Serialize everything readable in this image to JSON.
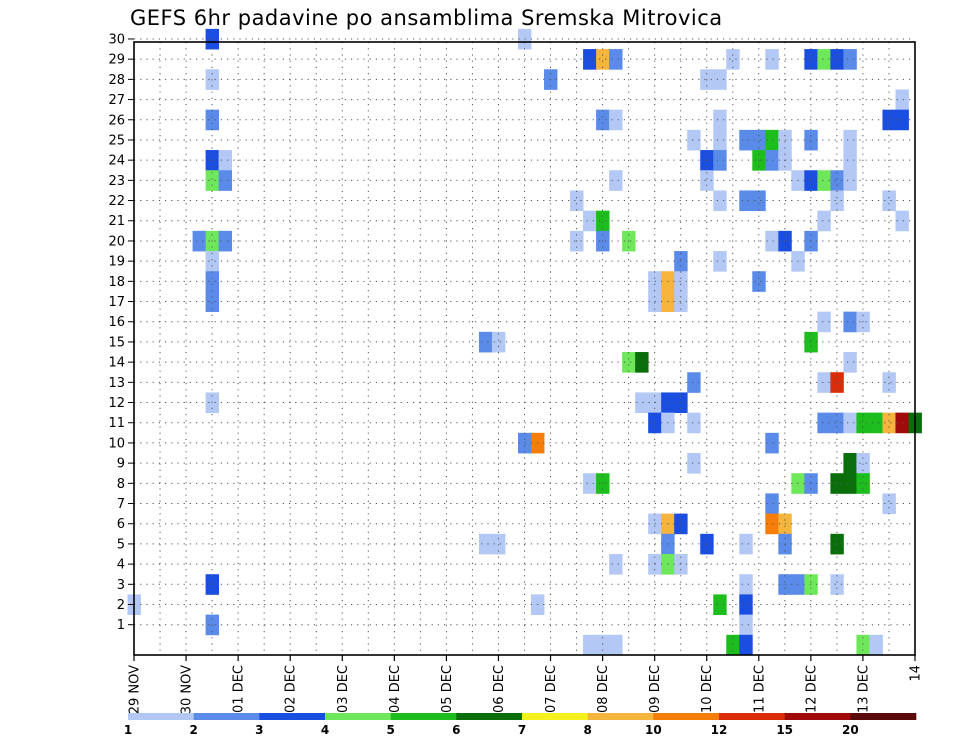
{
  "chart_data": {
    "type": "heatmap",
    "title": "GEFS 6hr padavine po ansamblima Sremska Mitrovica",
    "x_tick_labels": [
      "29 NOV",
      "30 NOV",
      "01 DEC",
      "02 DEC",
      "03 DEC",
      "04 DEC",
      "05 DEC",
      "06 DEC",
      "07 DEC",
      "08 DEC",
      "09 DEC",
      "10 DEC",
      "11 DEC",
      "12 DEC",
      "13 DEC",
      "14"
    ],
    "x_unit": "6-hour step (4 steps per day), step 0 = 29 NOV",
    "y_tick_labels": [
      "1",
      "2",
      "3",
      "4",
      "5",
      "6",
      "7",
      "8",
      "9",
      "10",
      "11",
      "12",
      "13",
      "14",
      "15",
      "16",
      "17",
      "18",
      "19",
      "20",
      "21",
      "22",
      "23",
      "24",
      "25",
      "26",
      "27",
      "28",
      "29",
      "30"
    ],
    "y_unit": "ensemble member (0..30)",
    "xlim": [
      0,
      60
    ],
    "ylim": [
      0,
      30
    ],
    "grid": true,
    "colorbar": {
      "labels": [
        "1",
        "2",
        "3",
        "4",
        "5",
        "6",
        "7",
        "8",
        "10",
        "12",
        "15",
        "20"
      ],
      "bounds": [
        1,
        2,
        3,
        4,
        5,
        6,
        7,
        8,
        10,
        12,
        15,
        20
      ],
      "colors": [
        "#b4c8f5",
        "#5a8be8",
        "#1a4ee0",
        "#6ee85a",
        "#1dbd1d",
        "#0a6e0a",
        "#f5f01e",
        "#f5b43c",
        "#f57d0a",
        "#dc2d0a",
        "#a00a0a",
        "#5a0a0a"
      ]
    },
    "cells": [
      [
        6,
        30,
        3
      ],
      [
        30,
        30,
        1
      ],
      [
        35,
        29,
        3
      ],
      [
        36,
        29,
        8
      ],
      [
        37,
        29,
        2
      ],
      [
        46,
        29,
        1
      ],
      [
        49,
        29,
        1
      ],
      [
        52,
        29,
        3
      ],
      [
        53,
        29,
        4
      ],
      [
        54,
        29,
        3
      ],
      [
        55,
        29,
        2
      ],
      [
        6,
        28,
        1
      ],
      [
        32,
        28,
        2
      ],
      [
        44,
        28,
        1
      ],
      [
        45,
        28,
        1
      ],
      [
        59,
        27,
        1
      ],
      [
        6,
        26,
        2
      ],
      [
        36,
        26,
        2
      ],
      [
        37,
        26,
        1
      ],
      [
        45,
        26,
        1
      ],
      [
        58,
        26,
        3
      ],
      [
        59,
        26,
        3
      ],
      [
        43,
        25,
        1
      ],
      [
        45,
        25,
        1
      ],
      [
        47,
        25,
        2
      ],
      [
        48,
        25,
        2
      ],
      [
        49,
        25,
        5
      ],
      [
        50,
        25,
        1
      ],
      [
        52,
        25,
        2
      ],
      [
        55,
        25,
        1
      ],
      [
        6,
        24,
        3
      ],
      [
        7,
        24,
        1
      ],
      [
        44,
        24,
        3
      ],
      [
        45,
        24,
        2
      ],
      [
        48,
        24,
        5
      ],
      [
        49,
        24,
        2
      ],
      [
        50,
        24,
        1
      ],
      [
        55,
        24,
        1
      ],
      [
        6,
        23,
        4
      ],
      [
        7,
        23,
        2
      ],
      [
        37,
        23,
        1
      ],
      [
        44,
        23,
        1
      ],
      [
        51,
        23,
        1
      ],
      [
        52,
        23,
        3
      ],
      [
        53,
        23,
        4
      ],
      [
        54,
        23,
        2
      ],
      [
        55,
        23,
        1
      ],
      [
        34,
        22,
        1
      ],
      [
        45,
        22,
        1
      ],
      [
        47,
        22,
        2
      ],
      [
        48,
        22,
        2
      ],
      [
        54,
        22,
        1
      ],
      [
        58,
        22,
        1
      ],
      [
        35,
        21,
        1
      ],
      [
        36,
        21,
        5
      ],
      [
        53,
        21,
        1
      ],
      [
        59,
        21,
        1
      ],
      [
        5,
        20,
        2
      ],
      [
        6,
        20,
        4
      ],
      [
        7,
        20,
        2
      ],
      [
        34,
        20,
        1
      ],
      [
        36,
        20,
        2
      ],
      [
        38,
        20,
        4
      ],
      [
        49,
        20,
        1
      ],
      [
        50,
        20,
        3
      ],
      [
        52,
        20,
        2
      ],
      [
        6,
        19,
        1
      ],
      [
        42,
        19,
        2
      ],
      [
        45,
        19,
        1
      ],
      [
        51,
        19,
        1
      ],
      [
        6,
        18,
        2
      ],
      [
        40,
        18,
        1
      ],
      [
        41,
        18,
        8
      ],
      [
        42,
        18,
        1
      ],
      [
        48,
        18,
        2
      ],
      [
        6,
        17,
        2
      ],
      [
        40,
        17,
        1
      ],
      [
        41,
        17,
        8
      ],
      [
        42,
        17,
        1
      ],
      [
        53,
        16,
        1
      ],
      [
        55,
        16,
        2
      ],
      [
        56,
        16,
        1
      ],
      [
        27,
        15,
        2
      ],
      [
        28,
        15,
        1
      ],
      [
        52,
        15,
        5
      ],
      [
        38,
        14,
        4
      ],
      [
        39,
        14,
        6
      ],
      [
        55,
        14,
        1
      ],
      [
        43,
        13,
        2
      ],
      [
        53,
        13,
        1
      ],
      [
        54,
        13,
        12
      ],
      [
        58,
        13,
        1
      ],
      [
        6,
        12,
        1
      ],
      [
        39,
        12,
        1
      ],
      [
        40,
        12,
        1
      ],
      [
        41,
        12,
        3
      ],
      [
        42,
        12,
        3
      ],
      [
        40,
        11,
        3
      ],
      [
        41,
        11,
        1
      ],
      [
        43,
        11,
        1
      ],
      [
        53,
        11,
        2
      ],
      [
        54,
        11,
        2
      ],
      [
        55,
        11,
        1
      ],
      [
        56,
        11,
        5
      ],
      [
        57,
        11,
        5
      ],
      [
        58,
        11,
        8
      ],
      [
        59,
        11,
        15
      ],
      [
        60,
        11,
        6
      ],
      [
        30,
        10,
        2
      ],
      [
        31,
        10,
        10
      ],
      [
        49,
        10,
        2
      ],
      [
        55,
        9,
        6
      ],
      [
        56,
        9,
        1
      ],
      [
        43,
        9,
        1
      ],
      [
        35,
        8,
        1
      ],
      [
        36,
        8,
        5
      ],
      [
        51,
        8,
        4
      ],
      [
        52,
        8,
        2
      ],
      [
        54,
        8,
        6
      ],
      [
        55,
        8,
        6
      ],
      [
        56,
        8,
        5
      ],
      [
        49,
        7,
        2
      ],
      [
        58,
        7,
        1
      ],
      [
        40,
        6,
        1
      ],
      [
        41,
        6,
        8
      ],
      [
        42,
        6,
        3
      ],
      [
        49,
        6,
        10
      ],
      [
        50,
        6,
        8
      ],
      [
        27,
        5,
        1
      ],
      [
        28,
        5,
        1
      ],
      [
        41,
        5,
        2
      ],
      [
        44,
        5,
        3
      ],
      [
        47,
        5,
        1
      ],
      [
        50,
        5,
        2
      ],
      [
        54,
        5,
        6
      ],
      [
        37,
        4,
        1
      ],
      [
        40,
        4,
        1
      ],
      [
        41,
        4,
        4
      ],
      [
        42,
        4,
        1
      ],
      [
        6,
        3,
        3
      ],
      [
        47,
        3,
        1
      ],
      [
        50,
        3,
        2
      ],
      [
        51,
        3,
        2
      ],
      [
        52,
        3,
        4
      ],
      [
        54,
        3,
        1
      ],
      [
        0,
        2,
        1
      ],
      [
        31,
        2,
        1
      ],
      [
        45,
        2,
        5
      ],
      [
        47,
        2,
        3
      ],
      [
        6,
        1,
        2
      ],
      [
        47,
        1,
        1
      ],
      [
        35,
        0,
        1
      ],
      [
        36,
        0,
        1
      ],
      [
        37,
        0,
        1
      ],
      [
        46,
        0,
        5
      ],
      [
        47,
        0,
        3
      ],
      [
        56,
        0,
        4
      ],
      [
        57,
        0,
        1
      ]
    ]
  }
}
